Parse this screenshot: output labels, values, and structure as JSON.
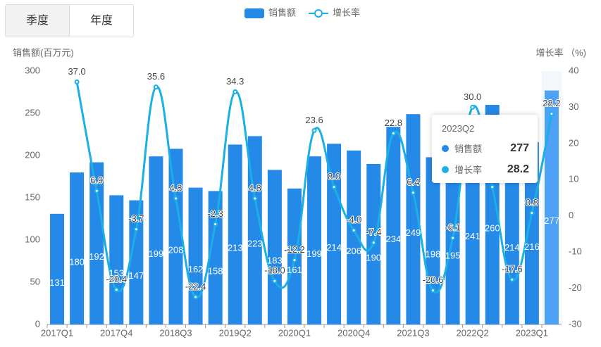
{
  "tabs": [
    "季度",
    "年度"
  ],
  "chart_data": {
    "type": "bar-line",
    "categories": [
      "2017Q1",
      null,
      null,
      "2017Q4",
      null,
      null,
      "2018Q3",
      null,
      null,
      "2019Q2",
      null,
      null,
      "2020Q1",
      null,
      null,
      "2020Q4",
      null,
      null,
      "2021Q3",
      null,
      null,
      "2022Q2",
      null,
      null,
      "2023Q1",
      null
    ],
    "series": [
      {
        "name": "销售额",
        "type": "bar",
        "color": "#2589e8",
        "values": [
          131,
          180,
          192,
          153,
          147,
          199,
          208,
          162,
          158,
          213,
          223,
          183,
          161,
          199,
          214,
          206,
          190,
          234,
          249,
          198,
          195,
          241,
          260,
          214,
          216,
          277
        ]
      },
      {
        "name": "增长率",
        "type": "line",
        "axis": "y2",
        "color": "#1ab0e6",
        "values": [
          null,
          37.0,
          6.9,
          -20.4,
          -3.7,
          35.6,
          4.8,
          -22.4,
          -2.3,
          34.3,
          4.8,
          -18.0,
          -12.2,
          23.6,
          8.0,
          -4.0,
          -7.4,
          22.8,
          6.4,
          -20.6,
          -6.1,
          30.0,
          8.0,
          -17.6,
          0.8,
          28.2
        ],
        "value_labels": [
          null,
          "37.0",
          "6.9",
          "-20.4",
          "-3.7",
          "35.6",
          "4.8",
          "-22.4",
          "-2.3",
          "34.3",
          "4.8",
          "-18.0",
          "-12.2",
          "23.6",
          "8.0",
          "-4.0",
          "-7.4",
          "22.8",
          "6.4",
          "-20.6",
          "-6.1",
          "30.0",
          null,
          "-17.6",
          "0.8",
          "28.2"
        ]
      }
    ],
    "ylabel": "销售额(百万元)",
    "y2label": "增长率 （%)",
    "ylim": [
      0,
      300
    ],
    "yticks": [
      0,
      50,
      100,
      150,
      200,
      250,
      300
    ],
    "y2lim": [
      -30,
      40
    ],
    "y2ticks": [
      -30,
      -20,
      -10,
      0,
      10,
      20,
      30,
      40
    ],
    "tooltip": {
      "title": "2023Q2"
    }
  }
}
